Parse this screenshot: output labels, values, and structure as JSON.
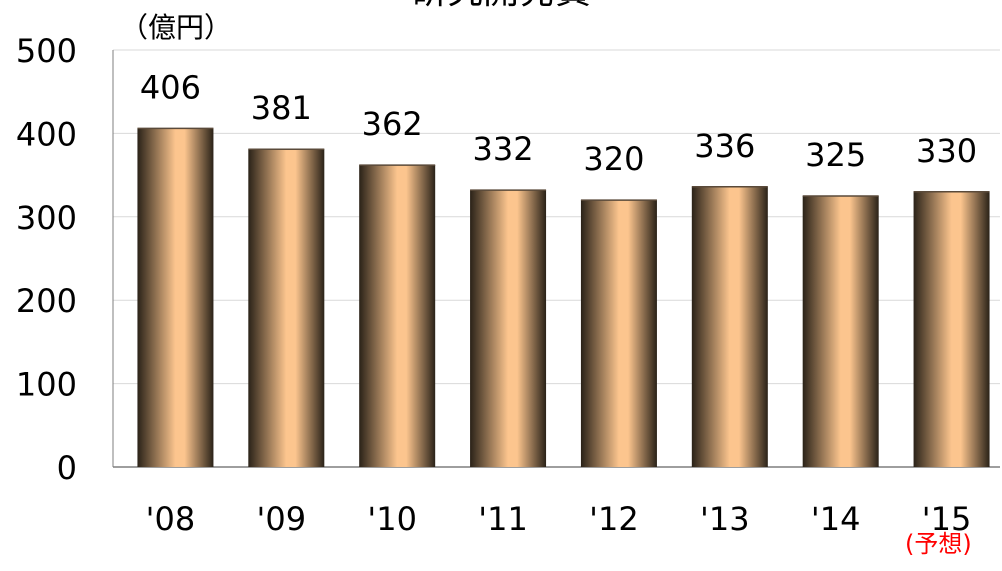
{
  "chart_data": {
    "type": "bar",
    "title": "研究開発費",
    "unit_label": "（億円）",
    "categories": [
      "'08",
      "'09",
      "'10",
      "'11",
      "'12",
      "'13",
      "'14",
      "'15"
    ],
    "values": [
      406,
      381,
      362,
      332,
      320,
      336,
      325,
      330
    ],
    "y_ticks": [
      "0",
      "100",
      "200",
      "300",
      "400",
      "500"
    ],
    "ylim": [
      0,
      500
    ],
    "grid": true,
    "legend": "none",
    "annotation": "(予想)",
    "annotation_color": "#ff0000",
    "bar_color": "#fcc58e",
    "bar_edge_color": "#2a2218"
  }
}
